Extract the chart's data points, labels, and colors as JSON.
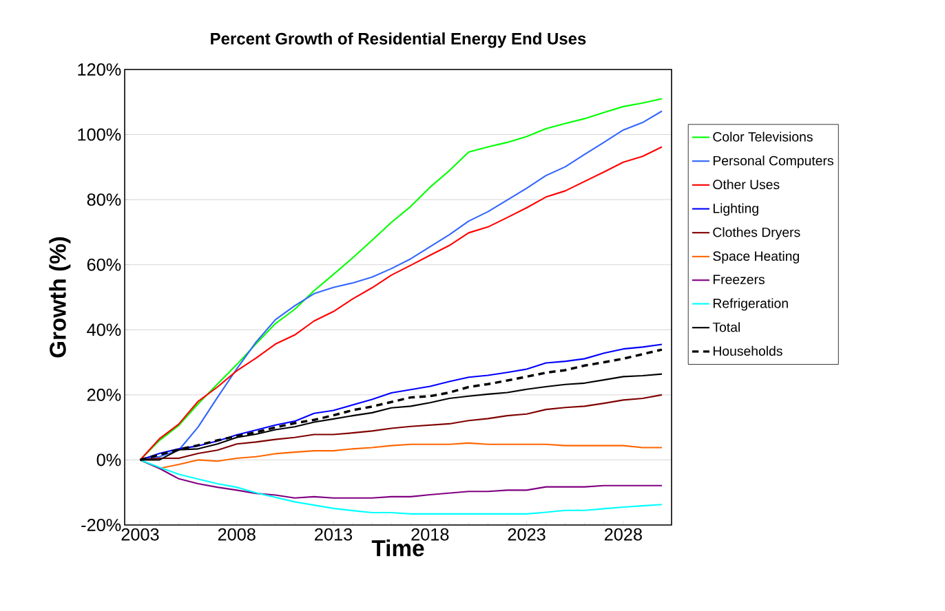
{
  "chart_data": {
    "type": "line",
    "title": "Percent Growth of Residential Energy End Uses",
    "xlabel": "Time",
    "ylabel": "Growth (%)",
    "x": [
      2003,
      2004,
      2005,
      2006,
      2007,
      2008,
      2009,
      2010,
      2011,
      2012,
      2013,
      2014,
      2015,
      2016,
      2017,
      2018,
      2019,
      2020,
      2021,
      2022,
      2023,
      2024,
      2025,
      2026,
      2027,
      2028,
      2029,
      2030
    ],
    "xlim": [
      2002.2,
      2030.5
    ],
    "xticks": [
      2003,
      2008,
      2013,
      2018,
      2023,
      2028
    ],
    "ylim": [
      -20,
      120
    ],
    "yticks": [
      {
        "value": -20,
        "label": "-20%"
      },
      {
        "value": 0,
        "label": "0%"
      },
      {
        "value": 20,
        "label": "20%"
      },
      {
        "value": 40,
        "label": "40%"
      },
      {
        "value": 60,
        "label": "60%"
      },
      {
        "value": 80,
        "label": "80%"
      },
      {
        "value": 100,
        "label": "100%"
      },
      {
        "value": 120,
        "label": "120%"
      }
    ],
    "grid": "y",
    "legend": "right",
    "marker": "none",
    "series": [
      {
        "name": "Color Televisions",
        "color": "#00ff00",
        "values": [
          0,
          6,
          10.6,
          17.2,
          23.3,
          29.3,
          35.7,
          41.9,
          46.3,
          52,
          57,
          62.1,
          67.5,
          73,
          77.9,
          83.8,
          88.9,
          94.6,
          96.2,
          97.6,
          99.4,
          101.8,
          103.4,
          104.9,
          106.8,
          108.6,
          109.7,
          111
        ]
      },
      {
        "name": "Personal Computers",
        "color": "#3366ff",
        "values": [
          0,
          1,
          3,
          10.1,
          19.2,
          28,
          36.2,
          43.1,
          47.4,
          51.1,
          53,
          54.4,
          56.2,
          58.8,
          61.8,
          65.5,
          69.2,
          73.4,
          76.3,
          79.9,
          83.5,
          87.4,
          90.1,
          93.9,
          97.6,
          101.4,
          103.7,
          107.2
        ]
      },
      {
        "name": "Other Uses",
        "color": "#ff0000",
        "values": [
          0,
          6.5,
          11,
          18,
          22.4,
          27.4,
          31.3,
          35.6,
          38.4,
          42.7,
          45.6,
          49.5,
          52.9,
          56.8,
          59.8,
          62.9,
          65.9,
          69.8,
          71.6,
          74.5,
          77.5,
          80.8,
          82.7,
          85.6,
          88.5,
          91.5,
          93.3,
          96.2
        ]
      },
      {
        "name": "Lighting",
        "color": "#0000ff",
        "values": [
          0,
          2,
          3.4,
          4.3,
          5.8,
          7.7,
          9.2,
          10.7,
          11.9,
          14.3,
          15.2,
          16.9,
          18.6,
          20.6,
          21.6,
          22.6,
          24.1,
          25.4,
          26,
          26.9,
          27.9,
          29.8,
          30.3,
          31.1,
          32.8,
          34.1,
          34.7,
          35.5
        ]
      },
      {
        "name": "Clothes Dryers",
        "color": "#800000",
        "values": [
          0,
          0.5,
          0.5,
          2,
          3,
          4.9,
          5.5,
          6.3,
          6.9,
          7.8,
          7.8,
          8.3,
          8.9,
          9.7,
          10.3,
          10.7,
          11.1,
          12.1,
          12.7,
          13.6,
          14.1,
          15.5,
          16.1,
          16.5,
          17.4,
          18.4,
          18.9,
          20
        ]
      },
      {
        "name": "Space Heating",
        "color": "#ff6600",
        "values": [
          0,
          -2.6,
          -1.4,
          0,
          -0.4,
          0.5,
          1,
          1.9,
          2.4,
          2.8,
          2.8,
          3.4,
          3.8,
          4.4,
          4.8,
          4.8,
          4.8,
          5.2,
          4.8,
          4.8,
          4.8,
          4.8,
          4.4,
          4.4,
          4.4,
          4.4,
          3.8,
          3.8
        ]
      },
      {
        "name": "Freezers",
        "color": "#800080",
        "values": [
          0,
          -2.6,
          -5.8,
          -7.3,
          -8.4,
          -9.3,
          -10.3,
          -10.8,
          -11.7,
          -11.3,
          -11.7,
          -11.7,
          -11.7,
          -11.3,
          -11.3,
          -10.7,
          -10.2,
          -9.7,
          -9.7,
          -9.3,
          -9.3,
          -8.3,
          -8.3,
          -8.3,
          -7.9,
          -7.9,
          -7.9,
          -7.9
        ]
      },
      {
        "name": "Refrigeration",
        "color": "#00ffff",
        "values": [
          0,
          -2.3,
          -4.4,
          -5.9,
          -7.3,
          -8.4,
          -10.1,
          -11.5,
          -12.9,
          -13.9,
          -14.9,
          -15.6,
          -16.2,
          -16.2,
          -16.6,
          -16.6,
          -16.6,
          -16.6,
          -16.6,
          -16.6,
          -16.6,
          -16.1,
          -15.5,
          -15.5,
          -15,
          -14.5,
          -14.1,
          -13.7
        ]
      },
      {
        "name": "Total",
        "color": "#000000",
        "values": [
          0,
          0,
          3.1,
          3.4,
          4.9,
          6.9,
          7.9,
          9.3,
          10.2,
          11.6,
          12.6,
          13.6,
          14.5,
          16,
          16.5,
          17.6,
          18.9,
          19.6,
          20.2,
          20.7,
          21.7,
          22.5,
          23.2,
          23.6,
          24.6,
          25.6,
          25.9,
          26.4
        ]
      },
      {
        "name": "Households",
        "color": "#000000",
        "line_style": "dashed",
        "values": [
          0,
          1.6,
          3.2,
          4.5,
          6,
          7.3,
          8.5,
          10,
          11.3,
          12.3,
          13.7,
          15.3,
          16.4,
          17.8,
          19.2,
          19.6,
          20.7,
          22.4,
          23.3,
          24.4,
          25.6,
          26.8,
          27.6,
          29,
          30,
          31.1,
          32.5,
          33.9
        ]
      }
    ]
  }
}
